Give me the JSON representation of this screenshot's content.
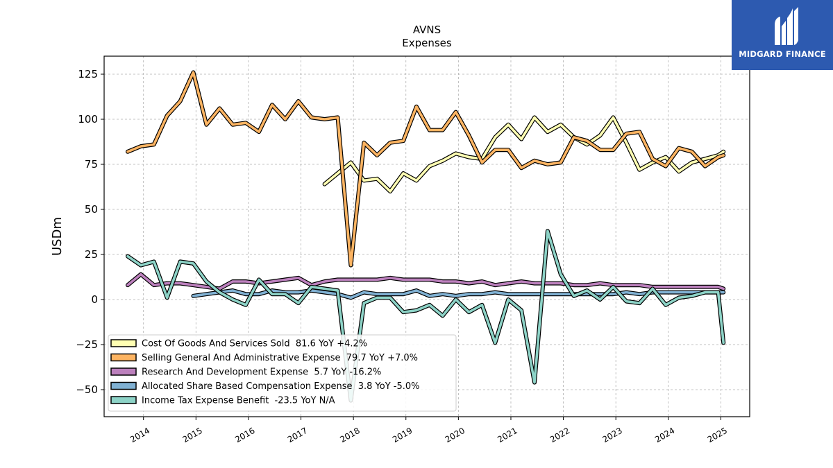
{
  "brand": {
    "name": "MIDGARD FINANCE",
    "bg_color": "#2d5ab0"
  },
  "chart_data": {
    "type": "line",
    "title": "AVNS",
    "subtitle": "Expenses",
    "xlabel": "",
    "ylabel": "USDm",
    "xlim": [
      2013.25,
      2025.55
    ],
    "ylim": [
      -65,
      135
    ],
    "yticks": [
      -50,
      -25,
      0,
      25,
      50,
      75,
      100,
      125
    ],
    "xticks": [
      "2014",
      "2015",
      "2016",
      "2017",
      "2018",
      "2019",
      "2020",
      "2021",
      "2022",
      "2023",
      "2024",
      "2025"
    ],
    "grid": true,
    "legend_position": "lower-left",
    "series": [
      {
        "name": "Cost Of Goods And Services Sold  81.6 YoY +4.2%",
        "color": "#ffffb3",
        "x": [
          2017.45,
          2017.7,
          2017.95,
          2018.2,
          2018.45,
          2018.7,
          2018.95,
          2019.2,
          2019.45,
          2019.7,
          2019.95,
          2020.2,
          2020.45,
          2020.7,
          2020.95,
          2021.2,
          2021.45,
          2021.7,
          2021.95,
          2022.2,
          2022.45,
          2022.7,
          2022.95,
          2023.2,
          2023.45,
          2023.7,
          2023.95,
          2024.2,
          2024.45,
          2024.7,
          2024.95,
          2025.05
        ],
        "y": [
          64,
          70,
          76,
          66,
          67,
          60,
          70,
          66,
          74,
          77,
          81,
          79,
          78,
          90,
          97,
          89,
          101,
          93,
          97,
          90,
          86,
          91,
          101,
          87,
          72,
          76,
          79,
          71,
          76,
          78,
          80,
          82
        ]
      },
      {
        "name": "Selling General And Administrative Expense  79.7 YoY +7.0%",
        "color": "#fdb462",
        "x": [
          2013.7,
          2013.95,
          2014.2,
          2014.45,
          2014.7,
          2014.95,
          2015.2,
          2015.45,
          2015.7,
          2015.95,
          2016.2,
          2016.45,
          2016.7,
          2016.95,
          2017.2,
          2017.45,
          2017.7,
          2017.95,
          2018.2,
          2018.45,
          2018.7,
          2018.95,
          2019.2,
          2019.45,
          2019.7,
          2019.95,
          2020.2,
          2020.45,
          2020.7,
          2020.95,
          2021.2,
          2021.45,
          2021.7,
          2021.95,
          2022.2,
          2022.45,
          2022.7,
          2022.95,
          2023.2,
          2023.45,
          2023.7,
          2023.95,
          2024.2,
          2024.45,
          2024.7,
          2024.95,
          2025.05
        ],
        "y": [
          82,
          85,
          86,
          102,
          110,
          126,
          97,
          106,
          97,
          98,
          93,
          108,
          100,
          110,
          101,
          100,
          101,
          19,
          87,
          80,
          87,
          88,
          107,
          94,
          94,
          104,
          91,
          76,
          83,
          83,
          73,
          77,
          75,
          76,
          90,
          88,
          83,
          83,
          92,
          93,
          78,
          74,
          84,
          82,
          74,
          79,
          80
        ]
      },
      {
        "name": "Research And Development Expense  5.7 YoY -16.2%",
        "color": "#bc80bd",
        "x": [
          2013.7,
          2013.95,
          2014.2,
          2014.45,
          2014.7,
          2014.95,
          2015.2,
          2015.45,
          2015.7,
          2015.95,
          2016.2,
          2016.45,
          2016.7,
          2016.95,
          2017.2,
          2017.45,
          2017.7,
          2017.95,
          2018.2,
          2018.45,
          2018.7,
          2018.95,
          2019.2,
          2019.45,
          2019.7,
          2019.95,
          2020.2,
          2020.45,
          2020.7,
          2020.95,
          2021.2,
          2021.45,
          2021.7,
          2021.95,
          2022.2,
          2022.45,
          2022.7,
          2022.95,
          2023.2,
          2023.45,
          2023.7,
          2023.95,
          2024.2,
          2024.45,
          2024.7,
          2024.95,
          2025.05
        ],
        "y": [
          8,
          14,
          8,
          9,
          9,
          8,
          7,
          6,
          10,
          10,
          9,
          10,
          11,
          12,
          8,
          10,
          11,
          11,
          11,
          11,
          12,
          11,
          11,
          11,
          10,
          10,
          9,
          10,
          8,
          9,
          10,
          9,
          9,
          9,
          8,
          8,
          9,
          8,
          8,
          8,
          7,
          7,
          7,
          7,
          7,
          7,
          6
        ]
      },
      {
        "name": "Allocated Share Based Compensation Expense  3.8 YoY -5.0%",
        "color": "#80b1d3",
        "x": [
          2014.95,
          2015.2,
          2015.45,
          2015.7,
          2015.95,
          2016.2,
          2016.45,
          2016.7,
          2016.95,
          2017.2,
          2017.45,
          2017.7,
          2017.95,
          2018.2,
          2018.45,
          2018.7,
          2018.95,
          2019.2,
          2019.45,
          2019.7,
          2019.95,
          2020.2,
          2020.45,
          2020.7,
          2020.95,
          2021.2,
          2021.45,
          2021.7,
          2021.95,
          2022.2,
          2022.45,
          2022.7,
          2022.95,
          2023.2,
          2023.45,
          2023.7,
          2023.95,
          2024.2,
          2024.45,
          2024.7,
          2024.95,
          2025.05
        ],
        "y": [
          2,
          3,
          4,
          5,
          3,
          3,
          5,
          4,
          4,
          5,
          4,
          3,
          1,
          4,
          3,
          3,
          3,
          5,
          2,
          3,
          2,
          3,
          3,
          4,
          3,
          3,
          3,
          3,
          3,
          3,
          3,
          3,
          3,
          4,
          3,
          4,
          4,
          4,
          4,
          4,
          4,
          4
        ]
      },
      {
        "name": "Income Tax Expense Benefit  -23.5 YoY N/A",
        "color": "#8dd3c7",
        "x": [
          2013.7,
          2013.95,
          2014.2,
          2014.45,
          2014.7,
          2014.95,
          2015.2,
          2015.45,
          2015.7,
          2015.95,
          2016.2,
          2016.45,
          2016.7,
          2016.95,
          2017.2,
          2017.45,
          2017.7,
          2017.95,
          2018.2,
          2018.45,
          2018.7,
          2018.95,
          2019.2,
          2019.45,
          2019.7,
          2019.95,
          2020.2,
          2020.45,
          2020.7,
          2020.95,
          2021.2,
          2021.45,
          2021.7,
          2021.95,
          2022.2,
          2022.45,
          2022.7,
          2022.95,
          2023.2,
          2023.45,
          2023.7,
          2023.95,
          2024.2,
          2024.45,
          2024.7,
          2024.95,
          2025.05
        ],
        "y": [
          24,
          19,
          21,
          1,
          21,
          20,
          10,
          4,
          0,
          -3,
          11,
          3,
          3,
          -2,
          7,
          6,
          5,
          -56,
          -2,
          1,
          1,
          -7,
          -6,
          -3,
          -9,
          0,
          -7,
          -3,
          -24,
          0,
          -6,
          -46,
          38,
          14,
          2,
          5,
          0,
          7,
          -1,
          -2,
          6,
          -3,
          1,
          2,
          4,
          4,
          -24
        ]
      }
    ]
  }
}
